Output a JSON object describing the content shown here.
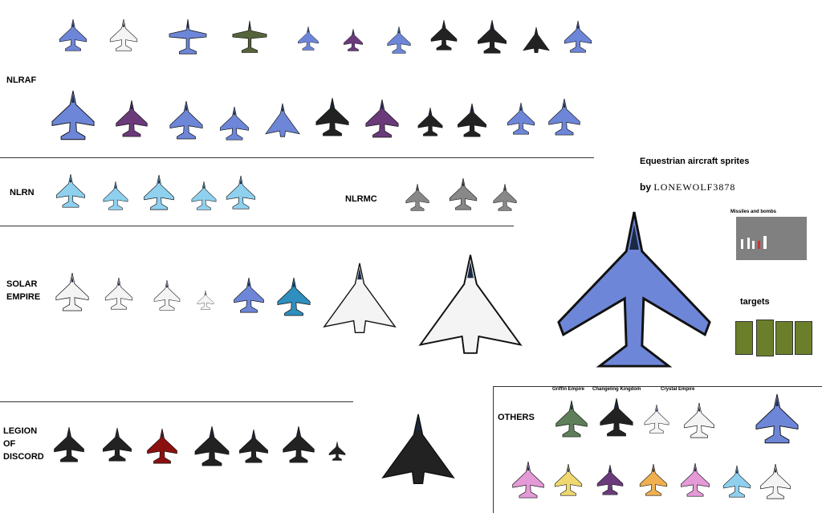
{
  "title": "Equestrian aircraft sprites",
  "by_label": "by",
  "author": "LONEWOLF3878",
  "sections": {
    "nlraf": "NLRAF",
    "nlrn": "NLRN",
    "nlrmc": "NLRMC",
    "solar": "SOLAR\nEMPIRE",
    "legion": "LEGION\nOF\nDISCORD",
    "others": "OTHERS"
  },
  "missiles_label": "Missiles and bombs",
  "targets_label": "targets",
  "faction_labels": {
    "griffin": "Griffin Empire",
    "changeling": "Changeling Kingdom",
    "crystal": "Crystal Empire"
  },
  "colors": {
    "blue": "#6d86d8",
    "dark": "#222222",
    "red": "#8b1010",
    "white": "#f4f4f4",
    "teal": "#2f8fbf",
    "olive": "#55643a",
    "purple": "#6a3a7a",
    "pink": "#e59ad8",
    "yellow": "#f0d870",
    "orange": "#f0b050",
    "lightblue": "#8fd0ee",
    "camo_green": "#5f7f5a",
    "grey": "#888888"
  }
}
